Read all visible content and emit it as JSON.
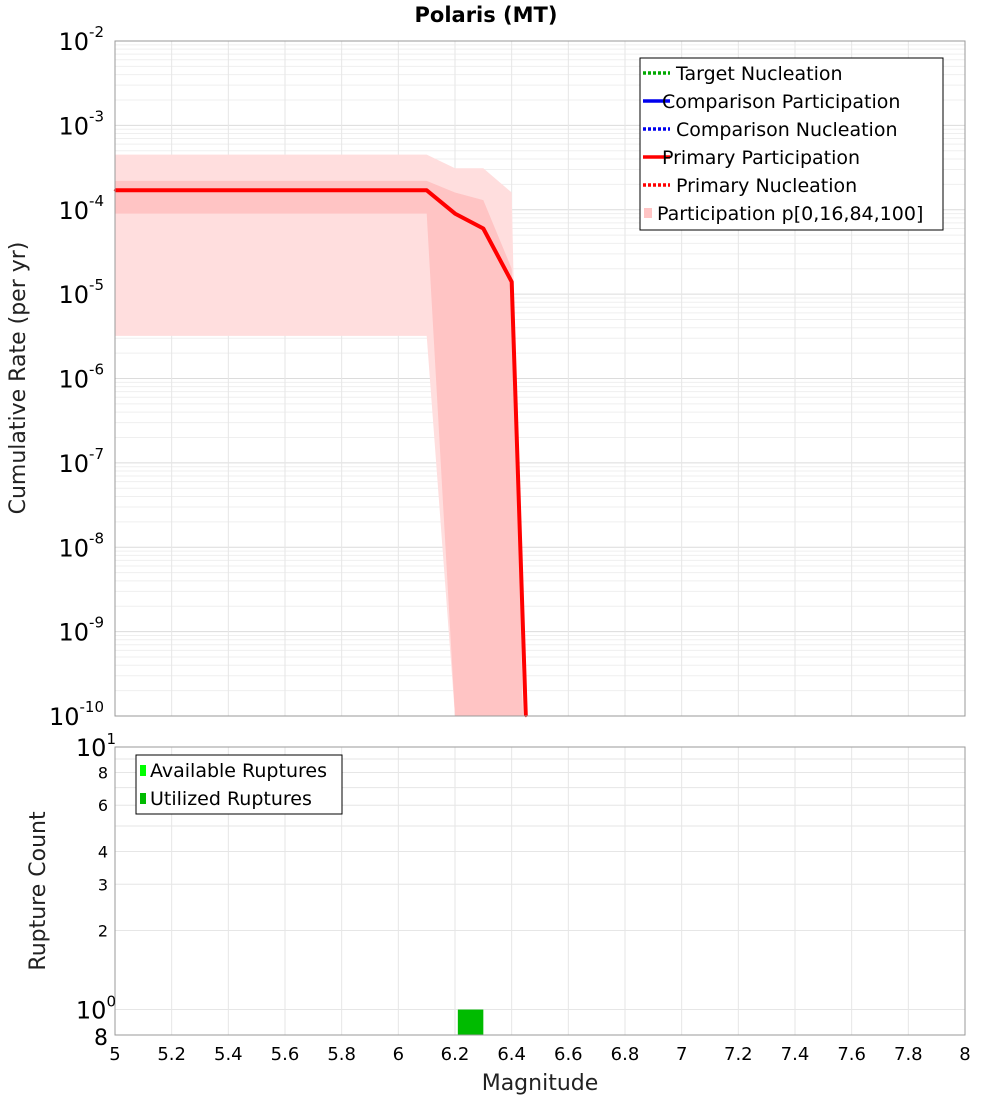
{
  "chart_data": [
    {
      "type": "line",
      "title": "Polaris (MT)",
      "xlabel": "",
      "ylabel": "Cumulative Rate (per yr)",
      "xlim": [
        5,
        8
      ],
      "ylim": [
        1e-10,
        0.01
      ],
      "yscale": "log",
      "grid": true,
      "legend_position": "top-right",
      "y_tick_exponents": [
        "-2",
        "-3",
        "-4",
        "-5",
        "-6",
        "-7",
        "-8",
        "-9",
        "-10"
      ],
      "y_tick_base": "10",
      "legend": [
        {
          "label": "Target Nucleation",
          "color": "#00aa00",
          "style": "dotted"
        },
        {
          "label": "Comparison Participation",
          "color": "#0000ee",
          "style": "solid"
        },
        {
          "label": "Comparison Nucleation",
          "color": "#0000ee",
          "style": "dotted"
        },
        {
          "label": "Primary Participation",
          "color": "#ff0000",
          "style": "solid"
        },
        {
          "label": "Primary Nucleation",
          "color": "#ff0000",
          "style": "dotted"
        },
        {
          "label": "Participation p[0,16,84,100]",
          "color": "#ffc4c4",
          "style": "band"
        }
      ],
      "series": [
        {
          "name": "Primary Participation",
          "color": "#ff0000",
          "x": [
            5.0,
            6.1,
            6.2,
            6.3,
            6.4,
            6.45
          ],
          "values": [
            0.00017,
            0.00017,
            9e-05,
            6e-05,
            1.4e-05,
            1e-10
          ]
        }
      ],
      "bands": [
        {
          "name": "p0-p100",
          "color": "#ffdede",
          "x": [
            5.0,
            6.1,
            6.2,
            6.3,
            6.4,
            6.44
          ],
          "lower": [
            3.2e-06,
            3.2e-06,
            1e-10,
            1e-10,
            1e-10,
            1e-10
          ],
          "upper": [
            0.00045,
            0.00045,
            0.00031,
            0.00031,
            0.00016,
            1e-10
          ]
        },
        {
          "name": "p16-p84",
          "color": "#ffc4c4",
          "x": [
            5.0,
            6.1,
            6.2,
            6.3,
            6.4,
            6.44
          ],
          "lower": [
            9e-05,
            9e-05,
            1e-10,
            1e-10,
            1e-10,
            1e-10
          ],
          "upper": [
            0.00022,
            0.00022,
            0.00016,
            0.00013,
            2e-05,
            1e-10
          ]
        }
      ]
    },
    {
      "type": "bar",
      "title": "",
      "xlabel": "Magnitude",
      "ylabel": "Rupture Count",
      "xlim": [
        5,
        8
      ],
      "ylim": [
        0.8,
        10
      ],
      "yscale": "log",
      "grid": true,
      "legend_position": "top-left",
      "x_ticks": [
        "5",
        "5.2",
        "5.4",
        "5.6",
        "5.8",
        "6",
        "6.2",
        "6.4",
        "6.6",
        "6.8",
        "7",
        "7.2",
        "7.4",
        "7.6",
        "7.8",
        "8"
      ],
      "y_ticks": [
        {
          "value": 8,
          "label": "8"
        },
        {
          "value": 6,
          "label": "6"
        },
        {
          "value": 4,
          "label": "4"
        },
        {
          "value": 3,
          "label": "3"
        },
        {
          "value": 2,
          "label": "2"
        }
      ],
      "y_tick_base": "10",
      "y_tick_top_exp": "1",
      "y_tick_one_exp": "0",
      "y_tick_bottom": "8",
      "legend": [
        {
          "label": "Available Ruptures",
          "color": "#00ff00"
        },
        {
          "label": "Utilized Ruptures",
          "color": "#00bb00"
        }
      ],
      "bars": [
        {
          "series": "Utilized Ruptures",
          "x0": 6.21,
          "x1": 6.3,
          "value": 1,
          "color": "#00bb00"
        }
      ]
    }
  ]
}
